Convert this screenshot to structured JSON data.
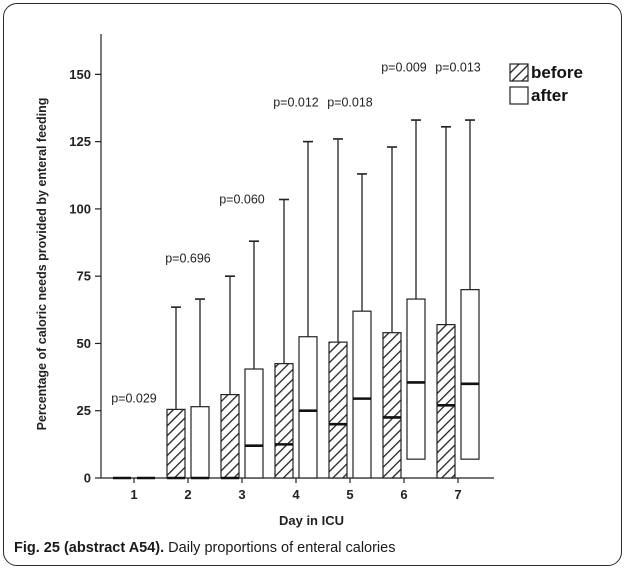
{
  "chart_data": {
    "type": "boxplot",
    "xlabel": "Day in ICU",
    "ylabel": "Percentage of caloric needs provided by enteral feeding",
    "ylim": [
      0,
      165
    ],
    "yticks": [
      0,
      25,
      50,
      75,
      100,
      125,
      150
    ],
    "categories": [
      "1",
      "2",
      "3",
      "4",
      "5",
      "6",
      "7"
    ],
    "legend_position": "top-right",
    "grid": false,
    "series": [
      {
        "name": "before",
        "pattern": "hatched",
        "boxes": [
          {
            "min": 0,
            "q1": 0,
            "median": 0,
            "q3": 0,
            "max": 0
          },
          {
            "min": 0,
            "q1": 0,
            "median": 0,
            "q3": 25.5,
            "max": 63.5
          },
          {
            "min": 0,
            "q1": 0,
            "median": 0,
            "q3": 31,
            "max": 75
          },
          {
            "min": 0,
            "q1": 0,
            "median": 12.5,
            "q3": 42.5,
            "max": 103.5
          },
          {
            "min": 0,
            "q1": 0,
            "median": 20,
            "q3": 50.5,
            "max": 126
          },
          {
            "min": 0,
            "q1": 0,
            "median": 22.5,
            "q3": 54,
            "max": 123
          },
          {
            "min": 0,
            "q1": 0,
            "median": 27,
            "q3": 57,
            "max": 130.5
          }
        ]
      },
      {
        "name": "after",
        "pattern": "open",
        "boxes": [
          {
            "min": 0,
            "q1": 0,
            "median": 0,
            "q3": 0,
            "max": 0
          },
          {
            "min": 0,
            "q1": 0,
            "median": 0,
            "q3": 26.5,
            "max": 66.5
          },
          {
            "min": 0,
            "q1": 0,
            "median": 12,
            "q3": 40.5,
            "max": 88
          },
          {
            "min": 0,
            "q1": 0,
            "median": 25,
            "q3": 52.5,
            "max": 125
          },
          {
            "min": 0,
            "q1": 0,
            "median": 29.5,
            "q3": 62,
            "max": 113
          },
          {
            "min": 0,
            "q1": 7,
            "median": 35.5,
            "q3": 66.5,
            "max": 133
          },
          {
            "min": 0,
            "q1": 7,
            "median": 35,
            "q3": 70,
            "max": 133
          }
        ]
      }
    ],
    "annotations": [
      {
        "day": "1",
        "text": "p=0.029",
        "y": 28
      },
      {
        "day": "2",
        "text": "p=0.696",
        "y": 80
      },
      {
        "day": "3",
        "text": "p=0.060",
        "y": 102
      },
      {
        "day": "4",
        "text": "p=0.012",
        "y": 138
      },
      {
        "day": "5",
        "text": "p=0.018",
        "y": 138
      },
      {
        "day": "6",
        "text": "p=0.009",
        "y": 151
      },
      {
        "day": "7",
        "text": "p=0.013",
        "y": 151
      }
    ]
  },
  "caption": {
    "label": "Fig. 25 (abstract A54).",
    "text": " Daily proportions of enteral calories"
  }
}
